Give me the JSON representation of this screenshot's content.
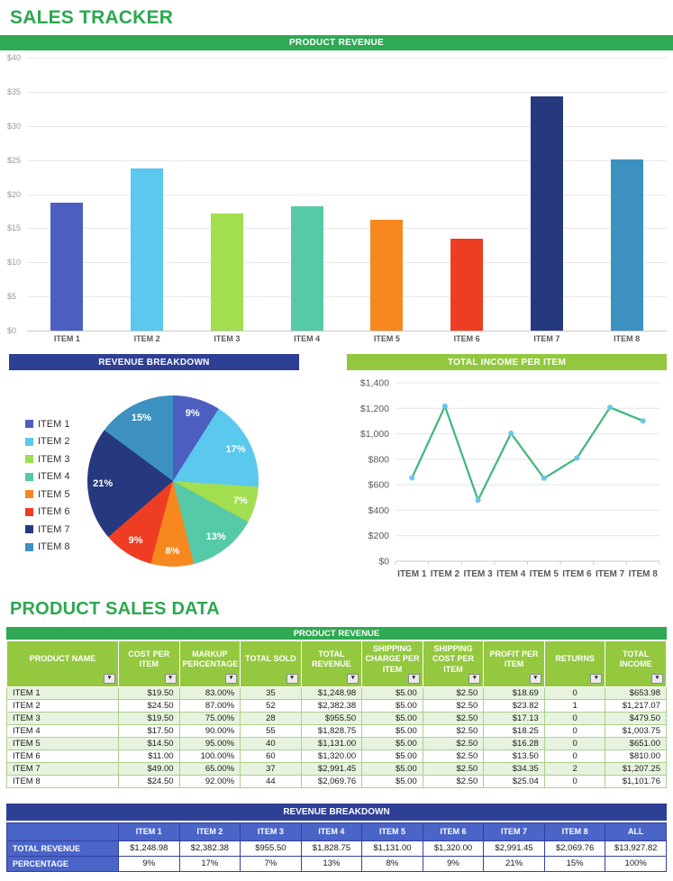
{
  "app": {
    "title": "SALES TRACKER",
    "section_title": "PRODUCT SALES DATA"
  },
  "colors": {
    "brand_green": "#2FA953",
    "title_green": "#2BA84F",
    "header_light_green": "#94C83F",
    "card_light_green": "#92C83E",
    "dark_blue": "#2E3F96",
    "mid_blue": "#4A64C8",
    "row_alt_green": "#E7F3DE",
    "line_green": "#3CB878",
    "marker_blue": "#67C6ED",
    "item_colors": [
      "#4C5FC0",
      "#5BC8EE",
      "#A2DE50",
      "#56C9A9",
      "#F6881F",
      "#EE3D23",
      "#27397E",
      "#3D91C0"
    ]
  },
  "chart_data": [
    {
      "type": "bar",
      "title": "PRODUCT REVENUE",
      "categories": [
        "ITEM 1",
        "ITEM 2",
        "ITEM 3",
        "ITEM 4",
        "ITEM 5",
        "ITEM 6",
        "ITEM 7",
        "ITEM 8"
      ],
      "values": [
        18.69,
        23.82,
        17.13,
        18.25,
        16.28,
        13.5,
        34.35,
        25.04
      ],
      "bar_colors": [
        "#4C5FC0",
        "#5BC8EE",
        "#A2DE50",
        "#56C9A9",
        "#F6881F",
        "#EE3D23",
        "#27397E",
        "#3D91C0"
      ],
      "ylim": [
        0,
        40
      ],
      "yticks_labels_top_to_bottom": [
        "$40",
        "$35",
        "$30",
        "$25",
        "$20",
        "$15",
        "$10",
        "$5",
        "$0"
      ],
      "grid": true,
      "legend_position": "none"
    },
    {
      "type": "pie",
      "title": "REVENUE BREAKDOWN",
      "categories": [
        "ITEM 1",
        "ITEM 2",
        "ITEM 3",
        "ITEM 4",
        "ITEM 5",
        "ITEM 6",
        "ITEM 7",
        "ITEM 8"
      ],
      "values": [
        1248.98,
        2382.38,
        955.5,
        1828.75,
        1131.0,
        1320.0,
        2991.45,
        2069.76
      ],
      "slice_labels": [
        "9%",
        "17%",
        "7%",
        "13%",
        "8%",
        "9%",
        "21%",
        "15%"
      ],
      "colors": [
        "#4C5FC0",
        "#5BC8EE",
        "#A2DE50",
        "#56C9A9",
        "#F6881F",
        "#EE3D23",
        "#27397E",
        "#3D91C0"
      ],
      "legend_position": "left"
    },
    {
      "type": "line",
      "title": "TOTAL INCOME PER ITEM",
      "categories": [
        "ITEM 1",
        "ITEM 2",
        "ITEM 3",
        "ITEM 4",
        "ITEM 5",
        "ITEM 6",
        "ITEM 7",
        "ITEM 8"
      ],
      "values": [
        653.98,
        1217.07,
        479.5,
        1003.75,
        651.0,
        810.0,
        1207.25,
        1101.76
      ],
      "ylim": [
        0,
        1400
      ],
      "yticks_labels_bottom_to_top": [
        "$0",
        "$200",
        "$400",
        "$600",
        "$800",
        "$1,000",
        "$1,200",
        "$1,400"
      ],
      "grid": true,
      "legend_position": "none"
    }
  ],
  "sales_table": {
    "caption": "PRODUCT REVENUE",
    "filter_icon": "▼",
    "headers": [
      "PRODUCT NAME",
      "COST PER ITEM",
      "MARKUP PERCENTAGE",
      "TOTAL SOLD",
      "TOTAL REVENUE",
      "SHIPPING CHARGE PER ITEM",
      "SHIPPING COST PER ITEM",
      "PROFIT PER ITEM",
      "RETURNS",
      "TOTAL INCOME"
    ],
    "rows": [
      [
        "ITEM 1",
        "$19.50",
        "83.00%",
        "35",
        "$1,248.98",
        "$5.00",
        "$2.50",
        "$18.69",
        "0",
        "$653.98"
      ],
      [
        "ITEM 2",
        "$24.50",
        "87.00%",
        "52",
        "$2,382.38",
        "$5.00",
        "$2.50",
        "$23.82",
        "1",
        "$1,217.07"
      ],
      [
        "ITEM 3",
        "$19.50",
        "75.00%",
        "28",
        "$955.50",
        "$5.00",
        "$2.50",
        "$17.13",
        "0",
        "$479.50"
      ],
      [
        "ITEM 4",
        "$17.50",
        "90.00%",
        "55",
        "$1,828.75",
        "$5.00",
        "$2.50",
        "$18.25",
        "0",
        "$1,003.75"
      ],
      [
        "ITEM 5",
        "$14.50",
        "95.00%",
        "40",
        "$1,131.00",
        "$5.00",
        "$2.50",
        "$16.28",
        "0",
        "$651.00"
      ],
      [
        "ITEM 6",
        "$11.00",
        "100.00%",
        "60",
        "$1,320.00",
        "$5.00",
        "$2.50",
        "$13.50",
        "0",
        "$810.00"
      ],
      [
        "ITEM 7",
        "$49.00",
        "65.00%",
        "37",
        "$2,991.45",
        "$5.00",
        "$2.50",
        "$34.35",
        "2",
        "$1,207.25"
      ],
      [
        "ITEM 8",
        "$24.50",
        "92.00%",
        "44",
        "$2,069.76",
        "$5.00",
        "$2.50",
        "$25.04",
        "0",
        "$1,101.76"
      ]
    ]
  },
  "breakdown_table": {
    "caption": "REVENUE BREAKDOWN",
    "col_headers": [
      "",
      "ITEM 1",
      "ITEM 2",
      "ITEM 3",
      "ITEM 4",
      "ITEM 5",
      "ITEM 6",
      "ITEM 7",
      "ITEM 8",
      "ALL"
    ],
    "rows": [
      {
        "label": "TOTAL REVENUE",
        "values": [
          "$1,248.98",
          "$2,382.38",
          "$955.50",
          "$1,828.75",
          "$1,131.00",
          "$1,320.00",
          "$2,991.45",
          "$2,069.76",
          "$13,927.82"
        ]
      },
      {
        "label": "PERCENTAGE",
        "values": [
          "9%",
          "17%",
          "7%",
          "13%",
          "8%",
          "9%",
          "21%",
          "15%",
          "100%"
        ]
      }
    ]
  }
}
